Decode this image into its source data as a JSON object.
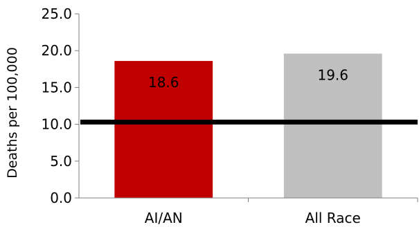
{
  "chart_data": {
    "type": "bar",
    "categories": [
      "AI/AN",
      "All Race"
    ],
    "values": [
      18.6,
      19.6
    ],
    "data_labels": [
      "18.6",
      "19.6"
    ],
    "bar_colors": [
      "#c00000",
      "#bfbfbf"
    ],
    "ylabel": "Deaths per 100,000",
    "xlabel": "",
    "ylim": [
      0,
      25
    ],
    "yticks": [
      0,
      5,
      10,
      15,
      20,
      25
    ],
    "ytick_labels": [
      "0.0",
      "5.0",
      "10.0",
      "15.0",
      "20.0",
      "25.0"
    ],
    "reference_line": {
      "value": 10.3,
      "color": "#000000"
    },
    "grid": false,
    "legend": "none"
  }
}
